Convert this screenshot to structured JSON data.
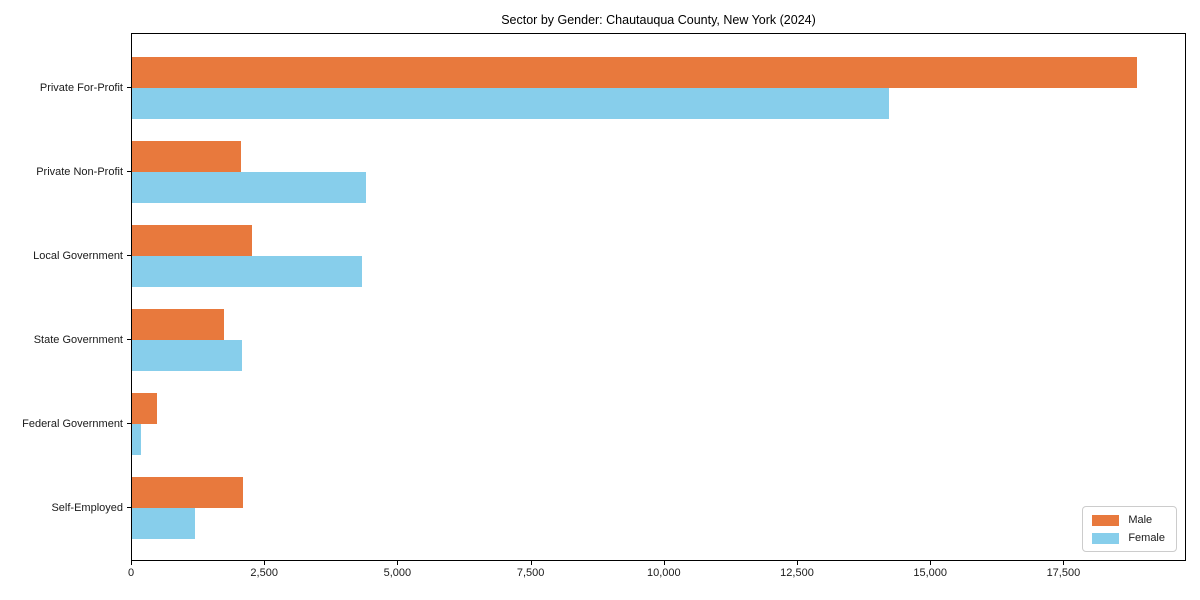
{
  "chart_data": {
    "type": "bar",
    "orientation": "horizontal",
    "title": "Sector by Gender: Chautauqua County, New York (2024)",
    "categories": [
      "Private For-Profit",
      "Private Non-Profit",
      "Local Government",
      "State Government",
      "Federal Government",
      "Self-Employed"
    ],
    "series": [
      {
        "name": "Male",
        "color": "#E8793D",
        "values": [
          18870,
          2050,
          2260,
          1730,
          470,
          2090
        ]
      },
      {
        "name": "Female",
        "color": "#87CEEB",
        "values": [
          14210,
          4400,
          4320,
          2070,
          170,
          1180
        ]
      }
    ],
    "xlabel": "",
    "ylabel": "",
    "xlim": [
      0,
      19800
    ],
    "xticks": [
      0,
      2500,
      5000,
      7500,
      10000,
      12500,
      15000,
      17500
    ],
    "xtick_labels": [
      "0",
      "2,500",
      "5,000",
      "7,500",
      "10,000",
      "12,500",
      "15,000",
      "17,500"
    ],
    "grid": false,
    "legend": {
      "position": "lower right"
    },
    "colors": {
      "spine": "#000000",
      "tick_text": "#1a1a1a",
      "background": "#ffffff"
    }
  }
}
